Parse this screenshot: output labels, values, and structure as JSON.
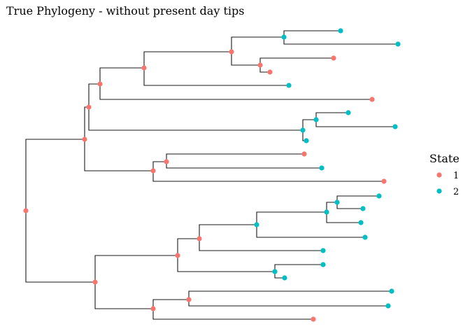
{
  "title": "True Phylogeny - without present day tips",
  "colors": {
    "1": "#F8766D",
    "2": "#00BFC4",
    "branch": "#1a1a1a"
  },
  "legend": {
    "title": "State",
    "items": [
      {
        "label": "1",
        "state": "1"
      },
      {
        "label": "2",
        "state": "2"
      }
    ]
  },
  "tree": {
    "id": "root",
    "state": "1",
    "children": [
      {
        "id": "n1",
        "state": "1",
        "children": [
          {
            "id": "n2",
            "state": "1",
            "children": [
              {
                "id": "n3",
                "state": "1",
                "children": [
                  {
                    "id": "n4",
                    "state": "1",
                    "children": [
                      {
                        "id": "n5",
                        "state": "1",
                        "children": [
                          {
                            "id": "n6",
                            "state": "2",
                            "children": [
                              {
                                "id": "t1",
                                "state": "2"
                              },
                              {
                                "id": "t2",
                                "state": "2"
                              }
                            ]
                          },
                          {
                            "id": "n7",
                            "state": "1",
                            "children": [
                              {
                                "id": "t3",
                                "state": "1"
                              },
                              {
                                "id": "t4",
                                "state": "1"
                              }
                            ]
                          }
                        ]
                      },
                      {
                        "id": "t5",
                        "state": "2"
                      }
                    ]
                  },
                  {
                    "id": "t6",
                    "state": "1"
                  }
                ]
              },
              {
                "id": "n8",
                "state": "2",
                "children": [
                  {
                    "id": "n9",
                    "state": "2",
                    "children": [
                      {
                        "id": "t7",
                        "state": "2"
                      },
                      {
                        "id": "t8",
                        "state": "2"
                      }
                    ]
                  },
                  {
                    "id": "t9",
                    "state": "2"
                  }
                ]
              }
            ]
          },
          {
            "id": "n10",
            "state": "1",
            "children": [
              {
                "id": "n11",
                "state": "1",
                "children": [
                  {
                    "id": "t10",
                    "state": "1"
                  },
                  {
                    "id": "t11",
                    "state": "2"
                  }
                ]
              },
              {
                "id": "t12",
                "state": "1"
              }
            ]
          }
        ]
      },
      {
        "id": "n12",
        "state": "1",
        "children": [
          {
            "id": "n13",
            "state": "1",
            "children": [
              {
                "id": "n14",
                "state": "1",
                "children": [
                  {
                    "id": "n15",
                    "state": "2",
                    "children": [
                      {
                        "id": "n16",
                        "state": "2",
                        "children": [
                          {
                            "id": "n17",
                            "state": "2",
                            "children": [
                              {
                                "id": "t13",
                                "state": "2"
                              },
                              {
                                "id": "t14",
                                "state": "2"
                              }
                            ]
                          },
                          {
                            "id": "t15",
                            "state": "2"
                          }
                        ]
                      },
                      {
                        "id": "t16",
                        "state": "2"
                      }
                    ]
                  },
                  {
                    "id": "t17",
                    "state": "2"
                  }
                ]
              },
              {
                "id": "n18",
                "state": "2",
                "children": [
                  {
                    "id": "t18",
                    "state": "2"
                  },
                  {
                    "id": "t19",
                    "state": "2"
                  }
                ]
              }
            ]
          },
          {
            "id": "n19",
            "state": "1",
            "children": [
              {
                "id": "n20",
                "state": "1",
                "children": [
                  {
                    "id": "t20",
                    "state": "2"
                  },
                  {
                    "id": "t21",
                    "state": "2"
                  }
                ]
              },
              {
                "id": "t22",
                "state": "1"
              }
            ]
          }
        ]
      }
    ]
  }
}
